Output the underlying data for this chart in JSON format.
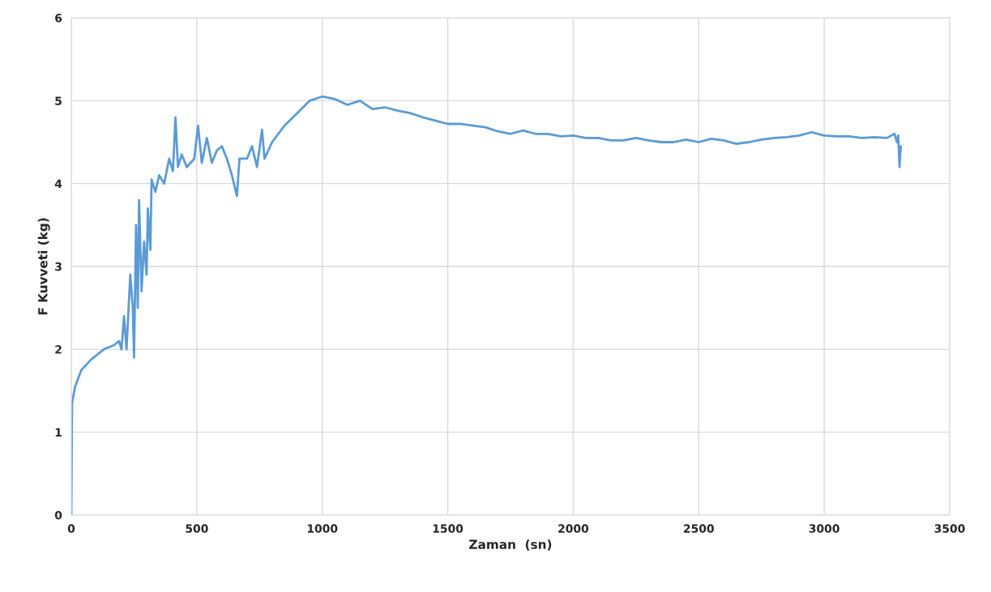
{
  "chart_data": {
    "type": "line",
    "xlabel": "Zaman  (sn)",
    "ylabel": "F Kuvveti (kg)",
    "xlim": [
      0,
      3500
    ],
    "xticks": [
      0,
      500,
      1000,
      1500,
      2000,
      2500,
      3000,
      3500
    ],
    "ylim": [
      0,
      6
    ],
    "yticks": [
      0,
      1,
      2,
      3,
      4,
      5,
      6
    ],
    "grid": true,
    "marker": "none",
    "line_style": "solid",
    "series": [
      {
        "color": "#5b9bd5",
        "x": [
          0,
          3,
          15,
          40,
          80,
          130,
          170,
          190,
          200,
          210,
          220,
          235,
          245,
          250,
          258,
          265,
          270,
          280,
          290,
          300,
          305,
          315,
          320,
          335,
          350,
          370,
          390,
          405,
          415,
          425,
          440,
          460,
          490,
          505,
          520,
          540,
          560,
          580,
          600,
          620,
          640,
          660,
          670,
          700,
          720,
          740,
          760,
          770,
          800,
          850,
          900,
          950,
          1000,
          1050,
          1100,
          1150,
          1200,
          1250,
          1300,
          1350,
          1400,
          1450,
          1500,
          1550,
          1600,
          1650,
          1700,
          1750,
          1800,
          1850,
          1900,
          1950,
          2000,
          2050,
          2100,
          2150,
          2200,
          2250,
          2300,
          2350,
          2400,
          2450,
          2500,
          2550,
          2600,
          2650,
          2700,
          2750,
          2800,
          2850,
          2900,
          2950,
          3000,
          3050,
          3100,
          3150,
          3200,
          3250,
          3280,
          3290,
          3295,
          3300,
          3305
        ],
        "values": [
          0,
          1.35,
          1.55,
          1.75,
          1.88,
          2.0,
          2.05,
          2.1,
          2.0,
          2.4,
          2.0,
          2.9,
          2.5,
          1.9,
          3.5,
          2.5,
          3.8,
          2.7,
          3.3,
          2.9,
          3.7,
          3.2,
          4.05,
          3.9,
          4.1,
          4.0,
          4.3,
          4.15,
          4.8,
          4.2,
          4.35,
          4.2,
          4.3,
          4.7,
          4.25,
          4.55,
          4.25,
          4.4,
          4.45,
          4.3,
          4.1,
          3.85,
          4.3,
          4.3,
          4.45,
          4.2,
          4.65,
          4.3,
          4.5,
          4.7,
          4.85,
          5.0,
          5.05,
          5.02,
          4.95,
          5.0,
          4.9,
          4.92,
          4.88,
          4.85,
          4.8,
          4.76,
          4.72,
          4.72,
          4.7,
          4.68,
          4.63,
          4.6,
          4.64,
          4.6,
          4.6,
          4.57,
          4.58,
          4.55,
          4.55,
          4.52,
          4.52,
          4.55,
          4.52,
          4.5,
          4.5,
          4.53,
          4.5,
          4.54,
          4.52,
          4.48,
          4.5,
          4.53,
          4.55,
          4.56,
          4.58,
          4.62,
          4.58,
          4.57,
          4.57,
          4.55,
          4.56,
          4.55,
          4.6,
          4.5,
          4.58,
          4.2,
          4.45
        ]
      }
    ]
  }
}
